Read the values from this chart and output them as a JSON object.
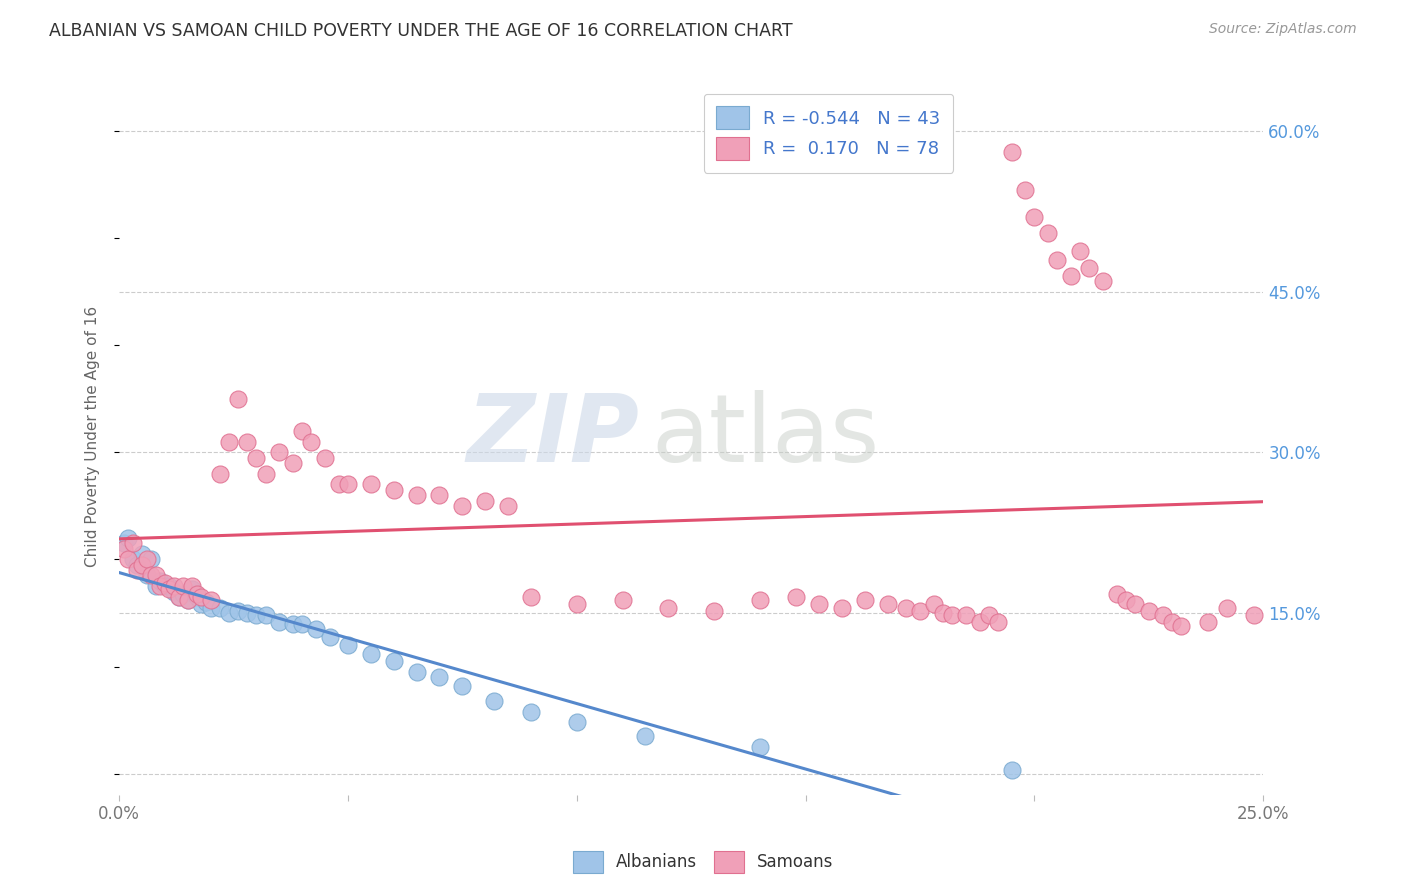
{
  "title": "ALBANIAN VS SAMOAN CHILD POVERTY UNDER THE AGE OF 16 CORRELATION CHART",
  "source": "Source: ZipAtlas.com",
  "ylabel": "Child Poverty Under the Age of 16",
  "xlim": [
    0.0,
    0.25
  ],
  "ylim": [
    -0.02,
    0.65
  ],
  "ytick_vals": [
    0.0,
    0.15,
    0.3,
    0.45,
    0.6
  ],
  "ytick_labels": [
    "",
    "15.0%",
    "30.0%",
    "45.0%",
    "60.0%"
  ],
  "xtick_vals": [
    0.0,
    0.05,
    0.1,
    0.15,
    0.2,
    0.25
  ],
  "xtick_edge_labels": [
    "0.0%",
    "",
    "",
    "",
    "",
    "25.0%"
  ],
  "albanian_color": "#a0c4e8",
  "albanian_edge_color": "#7aaad0",
  "samoan_color": "#f0a0b8",
  "samoan_edge_color": "#e07090",
  "albanian_trendline_color": "#5588cc",
  "samoan_trendline_color": "#e05070",
  "background_color": "#ffffff",
  "grid_color": "#cccccc",
  "title_color": "#333333",
  "ytick_color": "#5599dd",
  "xtick_color": "#777777",
  "watermark_zip_color": "#ccd8e8",
  "watermark_atlas_color": "#c8cec8",
  "legend_label_color": "#4477cc",
  "legend_text_1": "R = -0.544   N = 43",
  "legend_text_2": "R =  0.170   N = 78",
  "albanians_label": "Albanians",
  "samoans_label": "Samoans",
  "alb_x": [
    0.001,
    0.002,
    0.003,
    0.004,
    0.005,
    0.006,
    0.007,
    0.008,
    0.009,
    0.01,
    0.011,
    0.012,
    0.013,
    0.014,
    0.015,
    0.016,
    0.017,
    0.018,
    0.019,
    0.02,
    0.022,
    0.024,
    0.026,
    0.028,
    0.03,
    0.032,
    0.035,
    0.038,
    0.04,
    0.043,
    0.046,
    0.05,
    0.055,
    0.06,
    0.065,
    0.07,
    0.075,
    0.082,
    0.09,
    0.1,
    0.115,
    0.14,
    0.195
  ],
  "alb_y": [
    0.215,
    0.22,
    0.2,
    0.195,
    0.205,
    0.185,
    0.2,
    0.175,
    0.18,
    0.175,
    0.175,
    0.17,
    0.165,
    0.168,
    0.162,
    0.172,
    0.165,
    0.158,
    0.16,
    0.155,
    0.155,
    0.15,
    0.152,
    0.15,
    0.148,
    0.148,
    0.142,
    0.14,
    0.14,
    0.135,
    0.128,
    0.12,
    0.112,
    0.105,
    0.095,
    0.09,
    0.082,
    0.068,
    0.058,
    0.048,
    0.035,
    0.025,
    0.003
  ],
  "sam_x": [
    0.001,
    0.002,
    0.003,
    0.004,
    0.005,
    0.006,
    0.007,
    0.008,
    0.009,
    0.01,
    0.011,
    0.012,
    0.013,
    0.014,
    0.015,
    0.016,
    0.017,
    0.018,
    0.02,
    0.022,
    0.024,
    0.026,
    0.028,
    0.03,
    0.032,
    0.035,
    0.038,
    0.04,
    0.042,
    0.045,
    0.048,
    0.05,
    0.055,
    0.06,
    0.065,
    0.07,
    0.075,
    0.08,
    0.085,
    0.09,
    0.1,
    0.11,
    0.12,
    0.13,
    0.14,
    0.148,
    0.153,
    0.158,
    0.163,
    0.168,
    0.172,
    0.175,
    0.178,
    0.18,
    0.182,
    0.185,
    0.188,
    0.19,
    0.192,
    0.195,
    0.198,
    0.2,
    0.203,
    0.205,
    0.208,
    0.21,
    0.212,
    0.215,
    0.218,
    0.22,
    0.222,
    0.225,
    0.228,
    0.23,
    0.232,
    0.238,
    0.242,
    0.248
  ],
  "sam_y": [
    0.21,
    0.2,
    0.215,
    0.19,
    0.195,
    0.2,
    0.185,
    0.185,
    0.175,
    0.178,
    0.172,
    0.175,
    0.165,
    0.175,
    0.162,
    0.175,
    0.168,
    0.165,
    0.162,
    0.28,
    0.31,
    0.35,
    0.31,
    0.295,
    0.28,
    0.3,
    0.29,
    0.32,
    0.31,
    0.295,
    0.27,
    0.27,
    0.27,
    0.265,
    0.26,
    0.26,
    0.25,
    0.255,
    0.25,
    0.165,
    0.158,
    0.162,
    0.155,
    0.152,
    0.162,
    0.165,
    0.158,
    0.155,
    0.162,
    0.158,
    0.155,
    0.152,
    0.158,
    0.15,
    0.148,
    0.148,
    0.142,
    0.148,
    0.142,
    0.58,
    0.545,
    0.52,
    0.505,
    0.48,
    0.465,
    0.488,
    0.472,
    0.46,
    0.168,
    0.162,
    0.158,
    0.152,
    0.148,
    0.142,
    0.138,
    0.142,
    0.155,
    0.148
  ]
}
